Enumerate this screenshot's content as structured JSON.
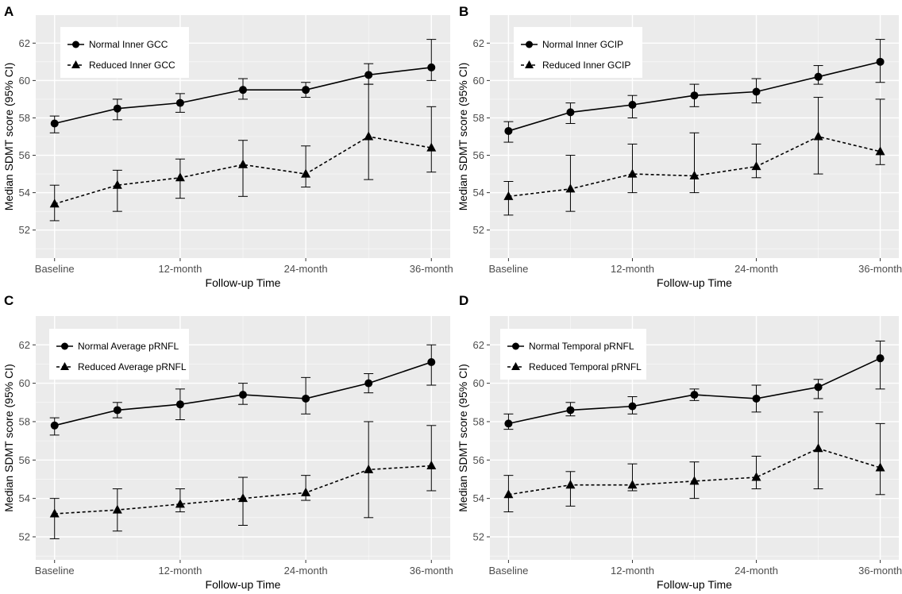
{
  "chart_data": [
    {
      "panel": "A",
      "type": "line",
      "xlabel": "Follow-up Time",
      "ylabel": "Median SDMT score (95% CI)",
      "ylim": [
        50.5,
        63.5
      ],
      "yticks": [
        52,
        54,
        56,
        58,
        60,
        62
      ],
      "x_positions": [
        0,
        6,
        12,
        18,
        24,
        30,
        36
      ],
      "xticks": [
        0,
        12,
        24,
        36
      ],
      "xtick_labels": [
        "Baseline",
        "12-month",
        "24-month",
        "36-month"
      ],
      "grid": true,
      "legend_position": "top-left",
      "series": [
        {
          "name": "Normal Inner GCC",
          "marker": "circle",
          "line": "solid",
          "values": [
            57.7,
            58.5,
            58.8,
            59.5,
            59.5,
            60.3,
            60.7
          ],
          "ci_low": [
            57.2,
            57.9,
            58.3,
            59.0,
            59.1,
            59.8,
            60.0
          ],
          "ci_high": [
            58.1,
            59.0,
            59.3,
            60.1,
            59.9,
            60.9,
            62.2
          ]
        },
        {
          "name": "Reduced Inner GCC",
          "marker": "triangle",
          "line": "dashed",
          "values": [
            53.4,
            54.4,
            54.8,
            55.5,
            55.0,
            57.0,
            56.4
          ],
          "ci_low": [
            52.5,
            53.0,
            53.7,
            53.8,
            54.3,
            54.7,
            55.1
          ],
          "ci_high": [
            54.4,
            55.2,
            55.8,
            56.8,
            56.5,
            59.8,
            58.6
          ]
        }
      ]
    },
    {
      "panel": "B",
      "type": "line",
      "xlabel": "Follow-up Time",
      "ylabel": "Median SDMT score (95% CI)",
      "ylim": [
        50.5,
        63.5
      ],
      "yticks": [
        52,
        54,
        56,
        58,
        60,
        62
      ],
      "x_positions": [
        0,
        6,
        12,
        18,
        24,
        30,
        36
      ],
      "xticks": [
        0,
        12,
        24,
        36
      ],
      "xtick_labels": [
        "Baseline",
        "12-month",
        "24-month",
        "36-month"
      ],
      "grid": true,
      "legend_position": "top-left",
      "series": [
        {
          "name": "Normal Inner GCIP",
          "marker": "circle",
          "line": "solid",
          "values": [
            57.3,
            58.3,
            58.7,
            59.2,
            59.4,
            60.2,
            61.0
          ],
          "ci_low": [
            56.7,
            57.7,
            58.0,
            58.6,
            58.8,
            59.8,
            59.9
          ],
          "ci_high": [
            57.8,
            58.8,
            59.2,
            59.8,
            60.1,
            60.8,
            62.2
          ]
        },
        {
          "name": "Reduced Inner GCIP",
          "marker": "triangle",
          "line": "dashed",
          "values": [
            53.8,
            54.2,
            55.0,
            54.9,
            55.4,
            57.0,
            56.2
          ],
          "ci_low": [
            52.8,
            53.0,
            54.0,
            54.0,
            54.8,
            55.0,
            55.5
          ],
          "ci_high": [
            54.6,
            56.0,
            56.6,
            57.2,
            56.6,
            59.1,
            59.0
          ]
        }
      ]
    },
    {
      "panel": "C",
      "type": "line",
      "xlabel": "Follow-up Time",
      "ylabel": "Median SDMT score (95% CI)",
      "ylim": [
        50.8,
        63.5
      ],
      "yticks": [
        52,
        54,
        56,
        58,
        60,
        62
      ],
      "x_positions": [
        0,
        6,
        12,
        18,
        24,
        30,
        36
      ],
      "xticks": [
        0,
        12,
        24,
        36
      ],
      "xtick_labels": [
        "Baseline",
        "12-month",
        "24-month",
        "36-month"
      ],
      "grid": true,
      "legend_position": "top-left",
      "series": [
        {
          "name": "Normal Average pRNFL",
          "marker": "circle",
          "line": "solid",
          "values": [
            57.8,
            58.6,
            58.9,
            59.4,
            59.2,
            60.0,
            61.1
          ],
          "ci_low": [
            57.3,
            58.2,
            58.1,
            58.9,
            58.4,
            59.5,
            59.9
          ],
          "ci_high": [
            58.2,
            59.0,
            59.7,
            60.0,
            60.3,
            60.5,
            62.0
          ]
        },
        {
          "name": "Reduced Average pRNFL",
          "marker": "triangle",
          "line": "dashed",
          "values": [
            53.2,
            53.4,
            53.7,
            54.0,
            54.3,
            55.5,
            55.7
          ],
          "ci_low": [
            51.9,
            52.3,
            53.3,
            52.6,
            53.9,
            53.0,
            54.4
          ],
          "ci_high": [
            54.0,
            54.5,
            54.5,
            55.1,
            55.2,
            58.0,
            57.8
          ]
        }
      ]
    },
    {
      "panel": "D",
      "type": "line",
      "xlabel": "Follow-up Time",
      "ylabel": "Median SDMT score (95% CI)",
      "ylim": [
        50.8,
        63.5
      ],
      "yticks": [
        52,
        54,
        56,
        58,
        60,
        62
      ],
      "x_positions": [
        0,
        6,
        12,
        18,
        24,
        30,
        36
      ],
      "xticks": [
        0,
        12,
        24,
        36
      ],
      "xtick_labels": [
        "Baseline",
        "12-month",
        "24-month",
        "36-month"
      ],
      "grid": true,
      "legend_position": "top-left",
      "series": [
        {
          "name": "Normal Temporal pRNFL",
          "marker": "circle",
          "line": "solid",
          "values": [
            57.9,
            58.6,
            58.8,
            59.4,
            59.2,
            59.8,
            61.3
          ],
          "ci_low": [
            57.6,
            58.3,
            58.4,
            59.1,
            58.5,
            59.2,
            59.7
          ],
          "ci_high": [
            58.4,
            59.0,
            59.3,
            59.7,
            59.9,
            60.2,
            62.2
          ]
        },
        {
          "name": "Reduced Temporal pRNFL",
          "marker": "triangle",
          "line": "dashed",
          "values": [
            54.2,
            54.7,
            54.7,
            54.9,
            55.1,
            56.6,
            55.6
          ],
          "ci_low": [
            53.3,
            53.6,
            54.4,
            54.0,
            54.5,
            54.5,
            54.2
          ],
          "ci_high": [
            55.2,
            55.4,
            55.8,
            55.9,
            56.2,
            58.5,
            57.9
          ]
        }
      ]
    }
  ]
}
